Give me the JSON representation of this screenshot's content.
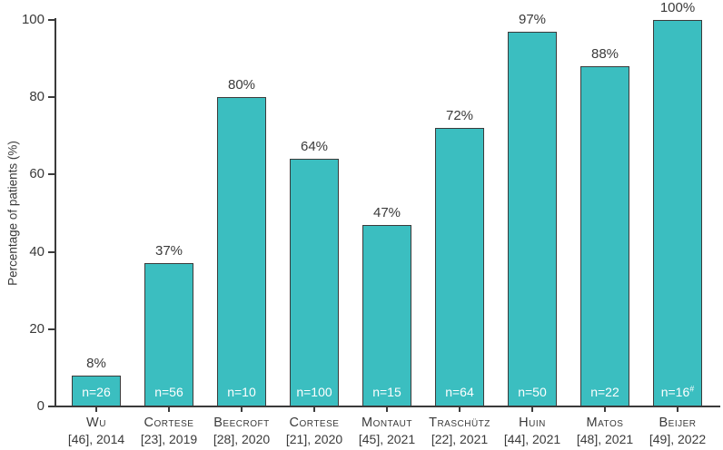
{
  "chart_data": {
    "type": "bar",
    "title": "",
    "xlabel": "",
    "ylabel": "Percentage of patients (%)",
    "ylim": [
      0,
      100
    ],
    "yticks": [
      0,
      20,
      40,
      60,
      80,
      100
    ],
    "grid": false,
    "legend": "none",
    "bar_fill_color": "#3bbec0",
    "bar_border_color": "#3b3b3b",
    "axis_color": "#3b3b3b",
    "text_color": "#3a3a3a",
    "n_label_color": "#ffffff",
    "categories": [
      "Wu [46], 2014",
      "Cortese [23], 2019",
      "Beecroft [28], 2020",
      "Cortese [21], 2020",
      "Montaut [45], 2021",
      "Traschütz [22], 2021",
      "Huin [44], 2021",
      "Matos [48], 2021",
      "Beijer [49], 2022"
    ],
    "values": [
      8,
      37,
      80,
      64,
      47,
      72,
      97,
      88,
      100
    ],
    "bars": [
      {
        "study": "Wu",
        "citation": "[46], 2014",
        "value": 8,
        "value_label": "8%",
        "n_label": "n=26",
        "n_sup": ""
      },
      {
        "study": "Cortese",
        "citation": "[23], 2019",
        "value": 37,
        "value_label": "37%",
        "n_label": "n=56",
        "n_sup": ""
      },
      {
        "study": "Beecroft",
        "citation": "[28], 2020",
        "value": 80,
        "value_label": "80%",
        "n_label": "n=10",
        "n_sup": ""
      },
      {
        "study": "Cortese",
        "citation": "[21], 2020",
        "value": 64,
        "value_label": "64%",
        "n_label": "n=100",
        "n_sup": ""
      },
      {
        "study": "Montaut",
        "citation": "[45], 2021",
        "value": 47,
        "value_label": "47%",
        "n_label": "n=15",
        "n_sup": ""
      },
      {
        "study": "Traschütz",
        "citation": "[22], 2021",
        "value": 72,
        "value_label": "72%",
        "n_label": "n=64",
        "n_sup": ""
      },
      {
        "study": "Huin",
        "citation": "[44], 2021",
        "value": 97,
        "value_label": "97%",
        "n_label": "n=50",
        "n_sup": ""
      },
      {
        "study": "Matos",
        "citation": "[48], 2021",
        "value": 88,
        "value_label": "88%",
        "n_label": "n=22",
        "n_sup": ""
      },
      {
        "study": "Beijer",
        "citation": "[49], 2022",
        "value": 100,
        "value_label": "100%",
        "n_label": "n=16",
        "n_sup": "#"
      }
    ]
  }
}
